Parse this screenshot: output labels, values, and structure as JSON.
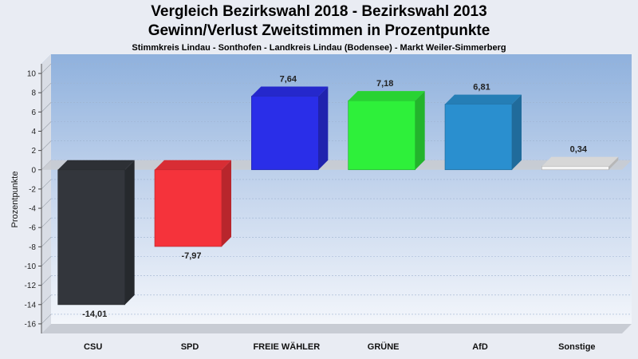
{
  "chart_data": {
    "type": "bar",
    "title": "Vergleich Bezirkswahl 2018 - Bezirkswahl 2013",
    "subtitle": "Gewinn/Verlust Zweitstimmen in Prozentpunkte",
    "subtitle2": "Stimmkreis Lindau - Sonthofen - Landkreis Lindau (Bodensee) - Markt Weiler-Simmerberg",
    "ylabel": "Prozentpunkte",
    "xlabel": "",
    "ylim": [
      -17,
      11
    ],
    "yticks": [
      "10",
      "8",
      "6",
      "4",
      "2",
      "0",
      "-2",
      "-4",
      "-6",
      "-8",
      "-10",
      "-12",
      "-14",
      "-16"
    ],
    "grid": true,
    "categories": [
      "CSU",
      "SPD",
      "FREIE WÄHLER",
      "GRÜNE",
      "AfD",
      "Sonstige"
    ],
    "values": [
      -14.01,
      -7.97,
      7.64,
      7.18,
      6.81,
      0.34
    ],
    "value_labels": [
      "-14,01",
      "-7,97",
      "7,64",
      "7,18",
      "6,81",
      "0,34"
    ],
    "colors": [
      "#33363c",
      "#f5333b",
      "#2a2ee8",
      "#2ef03a",
      "#2a8fcf",
      "#f4f4f4"
    ]
  }
}
